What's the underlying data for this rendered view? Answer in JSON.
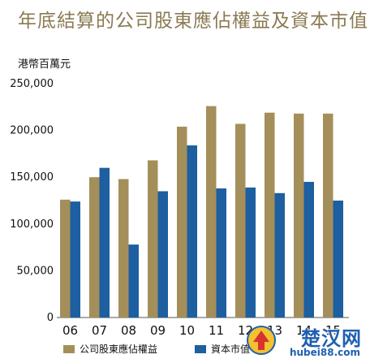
{
  "header": {
    "title": "年底結算的公司股東應佔權益及資本市值",
    "unit": "港幣百萬元"
  },
  "legend": {
    "equity_label": "公司股東應佔權益",
    "marketcap_label": "資本市值"
  },
  "watermark": {
    "main": "楚汉网",
    "sub": "hubei88.com"
  },
  "colors": {
    "equity": "#a48f5a",
    "marketcap": "#1d5fa0",
    "title": "#8a7a52"
  },
  "chart_data": {
    "type": "bar",
    "title": "年底結算的公司股東應佔權益及資本市值",
    "ylabel": "港幣百萬元",
    "xlabel": "",
    "ylim": [
      0,
      250000
    ],
    "yticks": [
      0,
      50000,
      100000,
      150000,
      200000,
      250000
    ],
    "ytick_labels": [
      "0",
      "50,000",
      "100,000",
      "150,000",
      "200,000",
      "250,000"
    ],
    "grid": false,
    "legend_position": "bottom",
    "categories": [
      "06",
      "07",
      "08",
      "09",
      "10",
      "11",
      "12",
      "13",
      "14",
      "15"
    ],
    "series": [
      {
        "name": "公司股東應佔權益",
        "values": [
          126000,
          150000,
          148000,
          168000,
          204000,
          226000,
          207000,
          219000,
          218000,
          218000
        ]
      },
      {
        "name": "資本市值",
        "values": [
          124000,
          160000,
          78000,
          135000,
          184000,
          138000,
          139000,
          133000,
          145000,
          125000
        ]
      }
    ]
  }
}
